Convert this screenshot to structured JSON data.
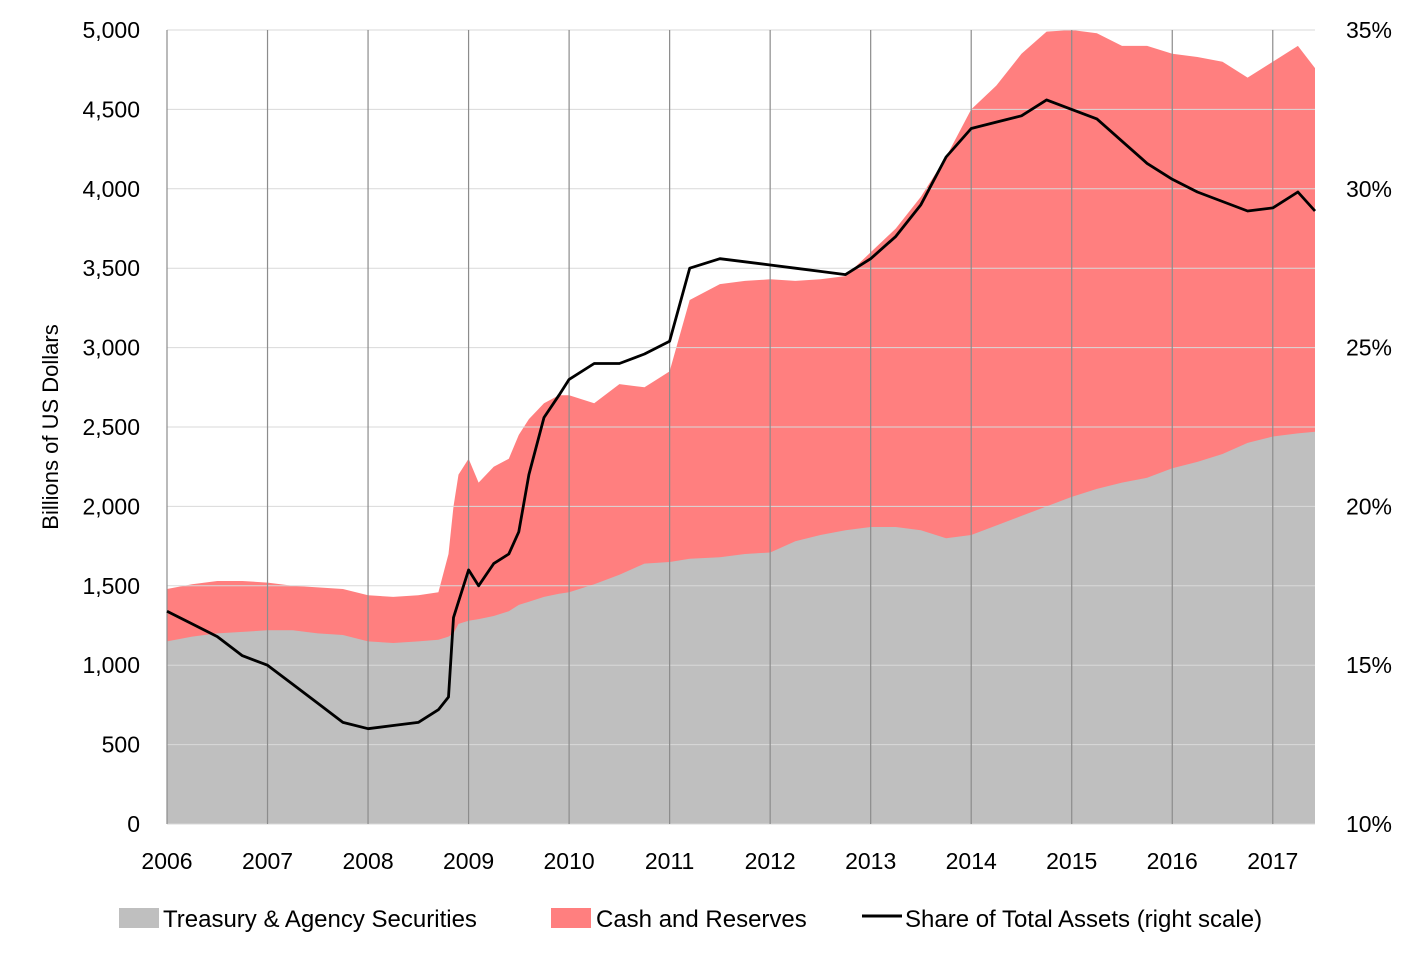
{
  "chart_data": {
    "type": "area",
    "title": "",
    "xlabel": "",
    "ylabel": "Billions of US Dollars",
    "y2label": "",
    "ylim": [
      0,
      5000
    ],
    "y2lim": [
      10,
      35
    ],
    "xlim": [
      2006,
      2017.42
    ],
    "grid": true,
    "legend_position": "bottom",
    "x_tick_labels": [
      "2006",
      "2007",
      "2008",
      "2009",
      "2010",
      "2011",
      "2012",
      "2013",
      "2014",
      "2015",
      "2016",
      "2017"
    ],
    "y_tick_labels": [
      "0",
      "500",
      "1,000",
      "1,500",
      "2,000",
      "2,500",
      "3,000",
      "3,500",
      "4,000",
      "4,500",
      "5,000"
    ],
    "y2_tick_labels": [
      "10%",
      "15%",
      "20%",
      "25%",
      "30%",
      "35%"
    ],
    "x": [
      2006.0,
      2006.25,
      2006.5,
      2006.75,
      2007.0,
      2007.25,
      2007.5,
      2007.75,
      2008.0,
      2008.25,
      2008.5,
      2008.7,
      2008.8,
      2008.85,
      2008.9,
      2009.0,
      2009.1,
      2009.25,
      2009.4,
      2009.5,
      2009.6,
      2009.75,
      2009.9,
      2010.0,
      2010.25,
      2010.5,
      2010.75,
      2011.0,
      2011.2,
      2011.5,
      2011.75,
      2012.0,
      2012.25,
      2012.5,
      2012.75,
      2013.0,
      2013.25,
      2013.5,
      2013.75,
      2014.0,
      2014.25,
      2014.5,
      2014.75,
      2015.0,
      2015.25,
      2015.5,
      2015.75,
      2016.0,
      2016.25,
      2016.5,
      2016.75,
      2017.0,
      2017.25,
      2017.42
    ],
    "series": [
      {
        "name": "Treasury & Agency Securities",
        "kind": "area",
        "axis": "left",
        "color": "#bfbfbf",
        "values": [
          1150,
          1180,
          1200,
          1210,
          1220,
          1220,
          1200,
          1190,
          1150,
          1140,
          1150,
          1160,
          1180,
          1200,
          1260,
          1280,
          1290,
          1310,
          1340,
          1380,
          1400,
          1430,
          1450,
          1460,
          1510,
          1570,
          1640,
          1650,
          1670,
          1680,
          1700,
          1710,
          1780,
          1820,
          1850,
          1870,
          1870,
          1850,
          1800,
          1820,
          1880,
          1940,
          2000,
          2060,
          2110,
          2150,
          2180,
          2240,
          2280,
          2330,
          2400,
          2440,
          2460,
          2470
        ]
      },
      {
        "name": "Cash and Reserves",
        "kind": "area",
        "axis": "left",
        "note": "total stacked height (securities + cash and reserves)",
        "color": "#ff7f7f",
        "values": [
          1480,
          1510,
          1530,
          1530,
          1520,
          1500,
          1490,
          1480,
          1440,
          1430,
          1440,
          1460,
          1700,
          2000,
          2200,
          2300,
          2150,
          2250,
          2300,
          2450,
          2550,
          2650,
          2700,
          2700,
          2650,
          2770,
          2750,
          2850,
          3300,
          3400,
          3420,
          3430,
          3420,
          3430,
          3450,
          3600,
          3750,
          3950,
          4200,
          4500,
          4650,
          4850,
          4990,
          5000,
          4980,
          4900,
          4900,
          4850,
          4830,
          4800,
          4700,
          4800,
          4900,
          4760
        ]
      },
      {
        "name": "Share of Total Assets (right scale)",
        "kind": "line",
        "axis": "right",
        "color": "#000000",
        "values": [
          16.7,
          16.3,
          15.9,
          15.3,
          15.0,
          14.4,
          13.8,
          13.2,
          13.0,
          13.1,
          13.2,
          13.6,
          14.0,
          16.5,
          17.0,
          18.0,
          17.5,
          18.2,
          18.5,
          19.2,
          21.0,
          22.8,
          23.5,
          24.0,
          24.5,
          24.5,
          24.8,
          25.2,
          27.5,
          27.8,
          27.7,
          27.6,
          27.5,
          27.4,
          27.3,
          27.8,
          28.5,
          29.5,
          31.0,
          31.9,
          32.1,
          32.3,
          32.8,
          32.5,
          32.2,
          31.5,
          30.8,
          30.3,
          29.9,
          29.6,
          29.3,
          29.4,
          29.9,
          29.3
        ]
      }
    ]
  },
  "legend": {
    "items": [
      {
        "label": "Treasury & Agency Securities",
        "color": "#bfbfbf"
      },
      {
        "label": "Cash and Reserves",
        "color": "#ff7f7f"
      },
      {
        "label": "Share of Total Assets (right scale)",
        "color": "#000000"
      }
    ]
  }
}
